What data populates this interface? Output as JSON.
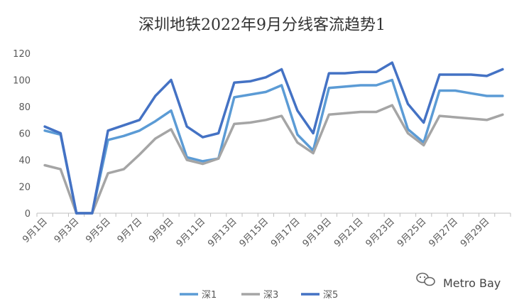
{
  "chart_data": {
    "type": "line",
    "title": "深圳地铁2022年9月分线客流趋势1",
    "xlabel": "",
    "ylabel": "",
    "ylim": [
      0,
      120
    ],
    "yticks": [
      0,
      20,
      40,
      60,
      80,
      100,
      120
    ],
    "grid": false,
    "legend_position": "bottom",
    "x": [
      "9月1日",
      "9月2日",
      "9月3日",
      "9月4日",
      "9月5日",
      "9月6日",
      "9月7日",
      "9月8日",
      "9月9日",
      "9月10日",
      "9月11日",
      "9月12日",
      "9月13日",
      "9月14日",
      "9月15日",
      "9月16日",
      "9月17日",
      "9月18日",
      "9月19日",
      "9月20日",
      "9月21日",
      "9月22日",
      "9月23日",
      "9月24日",
      "9月25日",
      "9月26日",
      "9月27日",
      "9月28日",
      "9月29日",
      "9月30日"
    ],
    "x_tick_labels": [
      "9月1日",
      "9月3日",
      "9月5日",
      "9月7日",
      "9月9日",
      "9月11日",
      "9月13日",
      "9月15日",
      "9月17日",
      "9月19日",
      "9月21日",
      "9月23日",
      "9月25日",
      "9月27日",
      "9月29日"
    ],
    "series": [
      {
        "name": "深1",
        "color": "#5b9bd5",
        "values": [
          62,
          59,
          0,
          0,
          55,
          58,
          62,
          69,
          77,
          42,
          39,
          41,
          87,
          89,
          91,
          96,
          59,
          47,
          94,
          95,
          96,
          96,
          100,
          63,
          53,
          92,
          92,
          90,
          88,
          88
        ]
      },
      {
        "name": "深3",
        "color": "#a5a5a5",
        "values": [
          36,
          33,
          0,
          0,
          30,
          33,
          44,
          56,
          63,
          40,
          37,
          41,
          67,
          68,
          70,
          73,
          53,
          45,
          74,
          75,
          76,
          76,
          81,
          60,
          51,
          73,
          72,
          71,
          70,
          74
        ]
      },
      {
        "name": "深5",
        "color": "#4472c4",
        "values": [
          65,
          60,
          0,
          0,
          62,
          66,
          70,
          88,
          100,
          65,
          57,
          60,
          98,
          99,
          102,
          108,
          77,
          60,
          105,
          105,
          106,
          106,
          113,
          82,
          68,
          104,
          104,
          104,
          103,
          108
        ]
      }
    ]
  },
  "watermark": {
    "text": "Metro Bay",
    "icon": "wechat-icon"
  }
}
